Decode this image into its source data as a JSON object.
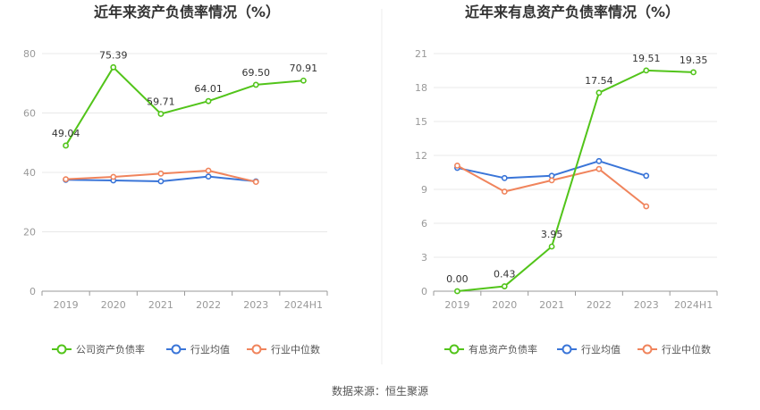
{
  "chart_data": [
    {
      "type": "line",
      "title": "近年来资产负债率情况（%）",
      "categories": [
        "2019",
        "2020",
        "2021",
        "2022",
        "2023",
        "2024H1"
      ],
      "yticks": [
        "0",
        "20",
        "40",
        "60",
        "80"
      ],
      "ylim": [
        0,
        80
      ],
      "grid": true,
      "legend": "bottom",
      "series": [
        {
          "name": "公司资产负债率",
          "color": "#52c41a",
          "values": [
            49.04,
            75.39,
            59.71,
            64.01,
            69.5,
            70.91
          ],
          "labels": [
            "49.04",
            "75.39",
            "59.71",
            "64.01",
            "69.50",
            "70.91"
          ]
        },
        {
          "name": "行业均值",
          "color": "#3a75d8",
          "values": [
            37.5,
            37.3,
            37.0,
            38.6,
            37.0,
            null
          ]
        },
        {
          "name": "行业中位数",
          "color": "#f0845c",
          "values": [
            37.7,
            38.5,
            39.6,
            40.6,
            36.8,
            null
          ]
        }
      ]
    },
    {
      "type": "line",
      "title": "近年来有息资产负债率情况（%）",
      "categories": [
        "2019",
        "2020",
        "2021",
        "2022",
        "2023",
        "2024H1"
      ],
      "yticks": [
        "0",
        "3",
        "6",
        "9",
        "12",
        "15",
        "18",
        "21"
      ],
      "ylim": [
        0,
        21
      ],
      "grid": true,
      "legend": "bottom",
      "series": [
        {
          "name": "有息资产负债率",
          "color": "#52c41a",
          "values": [
            0.0,
            0.43,
            3.95,
            17.54,
            19.51,
            19.35
          ],
          "labels": [
            "0.00",
            "0.43",
            "3.95",
            "17.54",
            "19.51",
            "19.35"
          ]
        },
        {
          "name": "行业均值",
          "color": "#3a75d8",
          "values": [
            10.9,
            10.0,
            10.2,
            11.5,
            10.2,
            null
          ]
        },
        {
          "name": "行业中位数",
          "color": "#f0845c",
          "values": [
            11.1,
            8.8,
            9.8,
            10.8,
            7.5,
            null
          ]
        }
      ]
    }
  ],
  "source": "数据来源：恒生聚源"
}
